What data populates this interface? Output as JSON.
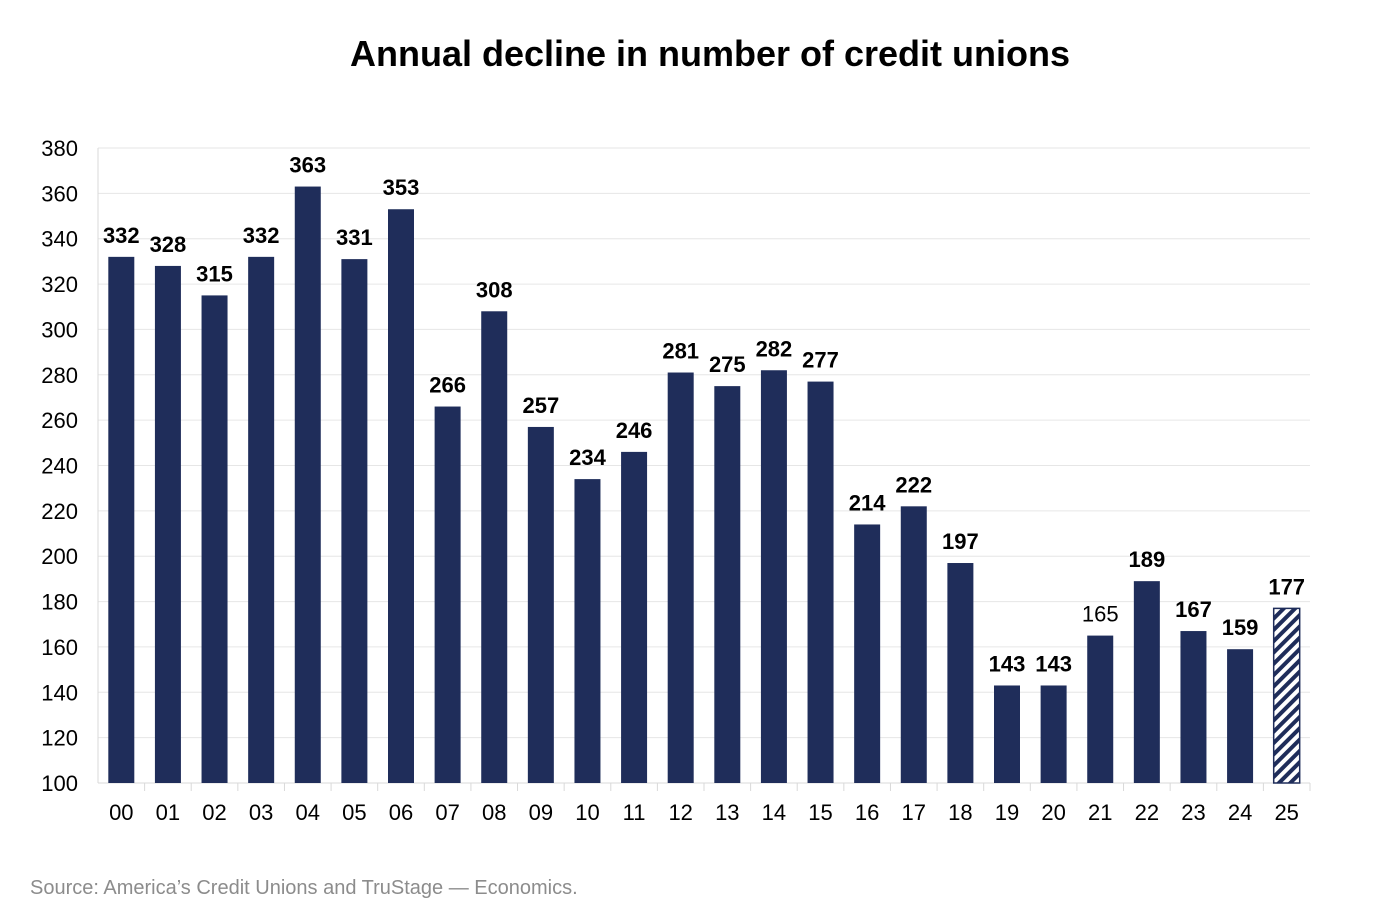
{
  "chart_data": {
    "type": "bar",
    "title": "Annual decline in number of credit unions",
    "xlabel": "",
    "ylabel": "",
    "ylim": [
      100,
      380
    ],
    "yticks": [
      100,
      120,
      140,
      160,
      180,
      200,
      220,
      240,
      260,
      280,
      300,
      320,
      340,
      360,
      380
    ],
    "grid": true,
    "legend": "none",
    "categories": [
      "00",
      "01",
      "02",
      "03",
      "04",
      "05",
      "06",
      "07",
      "08",
      "09",
      "10",
      "11",
      "12",
      "13",
      "14",
      "15",
      "16",
      "17",
      "18",
      "19",
      "20",
      "21",
      "22",
      "23",
      "24",
      "25"
    ],
    "values": [
      332,
      328,
      315,
      332,
      363,
      331,
      353,
      266,
      308,
      257,
      234,
      246,
      281,
      275,
      282,
      277,
      214,
      222,
      197,
      143,
      143,
      165,
      189,
      167,
      159,
      177
    ],
    "data_labels": [
      "332",
      "328",
      "315",
      "332",
      "363",
      "331",
      "353",
      "266",
      "308",
      "257",
      "234",
      "246",
      "281",
      "275",
      "282",
      "277",
      "214",
      "222",
      "197",
      "143",
      "143",
      "165",
      "189",
      "167",
      "159",
      "177"
    ],
    "bold_labels": [
      true,
      true,
      true,
      true,
      true,
      true,
      true,
      true,
      true,
      true,
      true,
      true,
      true,
      true,
      true,
      true,
      true,
      true,
      true,
      true,
      true,
      false,
      true,
      true,
      true,
      true
    ],
    "hatched": [
      false,
      false,
      false,
      false,
      false,
      false,
      false,
      false,
      false,
      false,
      false,
      false,
      false,
      false,
      false,
      false,
      false,
      false,
      false,
      false,
      false,
      false,
      false,
      false,
      false,
      true
    ],
    "bar_color": "#1f2d5a",
    "hatch_background": "#ffffff",
    "grid_color": "#e6e6e6",
    "axis_color": "#d9d9d9"
  },
  "source": "Source: America’s Credit Unions and TruStage — Economics."
}
